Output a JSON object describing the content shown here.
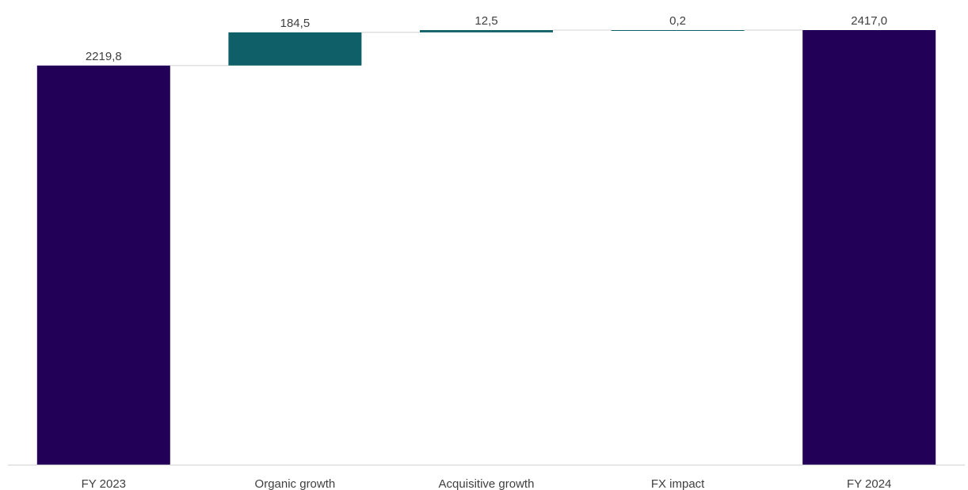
{
  "chart_data": {
    "type": "bar",
    "subtype": "waterfall",
    "title": "",
    "xlabel": "",
    "ylabel": "",
    "categories": [
      "FY 2023",
      "Organic growth",
      "Acquisitive growth",
      "FX impact",
      "FY 2024"
    ],
    "values": [
      2219.8,
      184.5,
      12.5,
      0.2,
      2417.0
    ],
    "value_labels": [
      "2219,8",
      "184,5",
      "12,5",
      "0,2",
      "2417,0"
    ],
    "kinds": [
      "total",
      "increase",
      "increase",
      "increase",
      "total"
    ],
    "ylim": [
      0,
      2417.0
    ],
    "grid": false,
    "legend": "none",
    "colors": {
      "total": "#220057",
      "increase": "#0f5f69",
      "connector": "#d9d9d9",
      "axis": "#d9d9d9"
    }
  }
}
